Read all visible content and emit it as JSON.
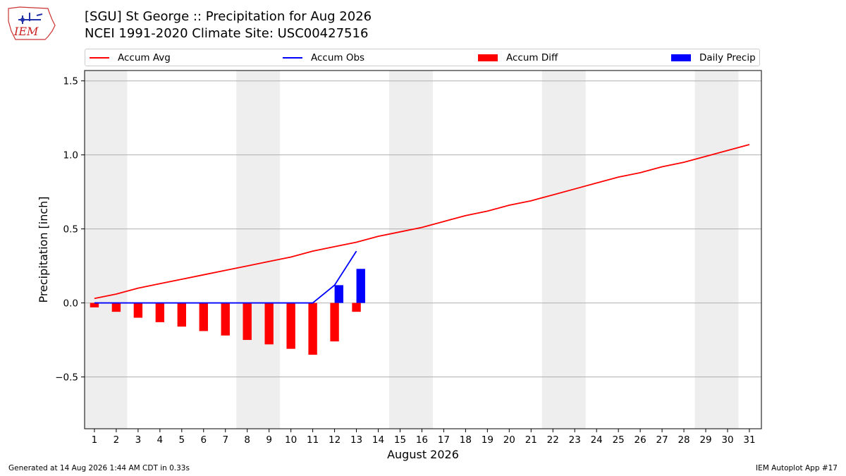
{
  "header": {
    "logo_text": "IEM",
    "title_line1": "[SGU] St George :: Precipitation for Aug 2026",
    "title_line2": "NCEI 1991-2020 Climate Site: USC00427516"
  },
  "footer": {
    "generated": "Generated at 14 Aug 2026 1:44 AM CDT in 0.33s",
    "app": "IEM Autoplot App #17"
  },
  "chart_data": {
    "type": "bar",
    "xlabel": "August 2026",
    "ylabel": "Precipitation [inch]",
    "ylim": [
      -0.85,
      1.57
    ],
    "xlim": [
      0.55,
      31.55
    ],
    "yticks": [
      -0.5,
      0.0,
      0.5,
      1.0,
      1.5
    ],
    "ytick_labels": [
      "−0.5",
      "0.0",
      "0.5",
      "1.0",
      "1.5"
    ],
    "grid": "horizontal",
    "legend_placement": "top",
    "weekend_shading": [
      [
        0.55,
        2.5
      ],
      [
        7.5,
        9.5
      ],
      [
        14.5,
        16.5
      ],
      [
        21.5,
        23.5
      ],
      [
        28.5,
        30.5
      ]
    ],
    "days": [
      1,
      2,
      3,
      4,
      5,
      6,
      7,
      8,
      9,
      10,
      11,
      12,
      13,
      14,
      15,
      16,
      17,
      18,
      19,
      20,
      21,
      22,
      23,
      24,
      25,
      26,
      27,
      28,
      29,
      30,
      31
    ],
    "series": [
      {
        "name": "Accum Avg",
        "kind": "line",
        "color": "#ff0000",
        "x": [
          1,
          2,
          3,
          4,
          5,
          6,
          7,
          8,
          9,
          10,
          11,
          12,
          13,
          14,
          15,
          16,
          17,
          18,
          19,
          20,
          21,
          22,
          23,
          24,
          25,
          26,
          27,
          28,
          29,
          30,
          31
        ],
        "values": [
          0.03,
          0.06,
          0.1,
          0.13,
          0.16,
          0.19,
          0.22,
          0.25,
          0.28,
          0.31,
          0.35,
          0.38,
          0.41,
          0.45,
          0.48,
          0.51,
          0.55,
          0.59,
          0.62,
          0.66,
          0.69,
          0.73,
          0.77,
          0.81,
          0.85,
          0.88,
          0.92,
          0.95,
          0.99,
          1.03,
          1.07
        ]
      },
      {
        "name": "Accum Obs",
        "kind": "line",
        "color": "#0000ff",
        "x": [
          1,
          2,
          3,
          4,
          5,
          6,
          7,
          8,
          9,
          10,
          11,
          12,
          13
        ],
        "values": [
          0,
          0,
          0,
          0,
          0,
          0,
          0,
          0,
          0,
          0,
          0,
          0.12,
          0.35
        ]
      },
      {
        "name": "Accum Diff",
        "kind": "bar",
        "color": "#ff0000",
        "x": [
          1,
          2,
          3,
          4,
          5,
          6,
          7,
          8,
          9,
          10,
          11,
          12,
          13
        ],
        "values": [
          -0.03,
          -0.06,
          -0.1,
          -0.13,
          -0.16,
          -0.19,
          -0.22,
          -0.25,
          -0.28,
          -0.31,
          -0.35,
          -0.26,
          -0.06
        ]
      },
      {
        "name": "Daily Precip",
        "kind": "bar",
        "color": "#0000ff",
        "x": [
          1,
          2,
          3,
          4,
          5,
          6,
          7,
          8,
          9,
          10,
          11,
          12,
          13
        ],
        "values": [
          0,
          0,
          0,
          0,
          0,
          0,
          0,
          0,
          0,
          0,
          0,
          0.12,
          0.23
        ]
      }
    ]
  }
}
